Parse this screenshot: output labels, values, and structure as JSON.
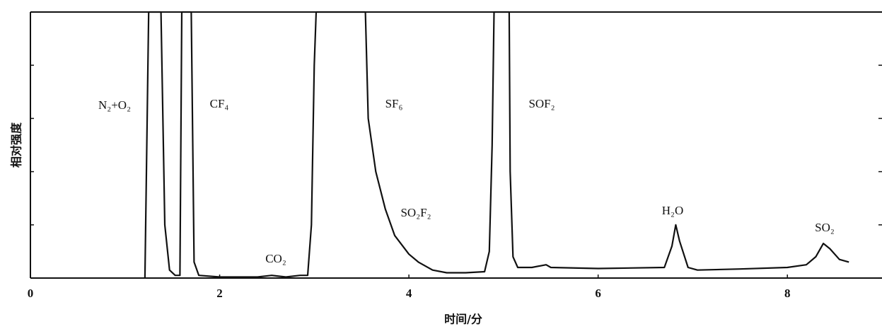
{
  "chart_data": {
    "type": "line",
    "x_label": "时间/分",
    "y_label": "相对强度",
    "xlim": [
      0,
      9
    ],
    "xticks": [
      0,
      2,
      4,
      6,
      8
    ],
    "ylim": [
      0,
      5
    ],
    "yticks": [
      0,
      1,
      2,
      3,
      4,
      5
    ],
    "color": "#111111",
    "x": [
      1.21,
      1.25,
      1.38,
      1.42,
      1.47,
      1.53,
      1.58,
      1.6,
      1.7,
      1.73,
      1.78,
      2.0,
      2.4,
      2.55,
      2.6,
      2.7,
      2.85,
      2.93,
      2.97,
      3.0,
      3.02,
      3.54,
      3.57,
      3.65,
      3.75,
      3.85,
      4.0,
      4.1,
      4.25,
      4.4,
      4.6,
      4.8,
      4.85,
      4.88,
      4.9,
      5.06,
      5.07,
      5.1,
      5.15,
      5.3,
      5.45,
      5.5,
      6.0,
      6.7,
      6.78,
      6.82,
      6.86,
      6.95,
      7.05,
      7.5,
      8.0,
      8.2,
      8.3,
      8.38,
      8.45,
      8.55,
      8.65
    ],
    "values": [
      0,
      5,
      5,
      1.0,
      0.15,
      0.05,
      0.05,
      5,
      5,
      0.3,
      0.05,
      0.02,
      0.02,
      0.05,
      0.04,
      0.02,
      0.05,
      0.05,
      1.0,
      4.0,
      5,
      5,
      3.0,
      2.0,
      1.3,
      0.8,
      0.45,
      0.3,
      0.15,
      0.1,
      0.1,
      0.12,
      0.5,
      2.5,
      5,
      5,
      2.0,
      0.4,
      0.2,
      0.2,
      0.25,
      0.2,
      0.18,
      0.2,
      0.6,
      1.0,
      0.7,
      0.2,
      0.15,
      0.17,
      0.2,
      0.25,
      0.4,
      0.65,
      0.55,
      0.35,
      0.3
    ],
    "annotations": [
      "N₂+O₂",
      "CF₄",
      "CO₂",
      "SF₆",
      "SO₂F₂",
      "SOF₂",
      "H₂O",
      "SO₂"
    ]
  }
}
